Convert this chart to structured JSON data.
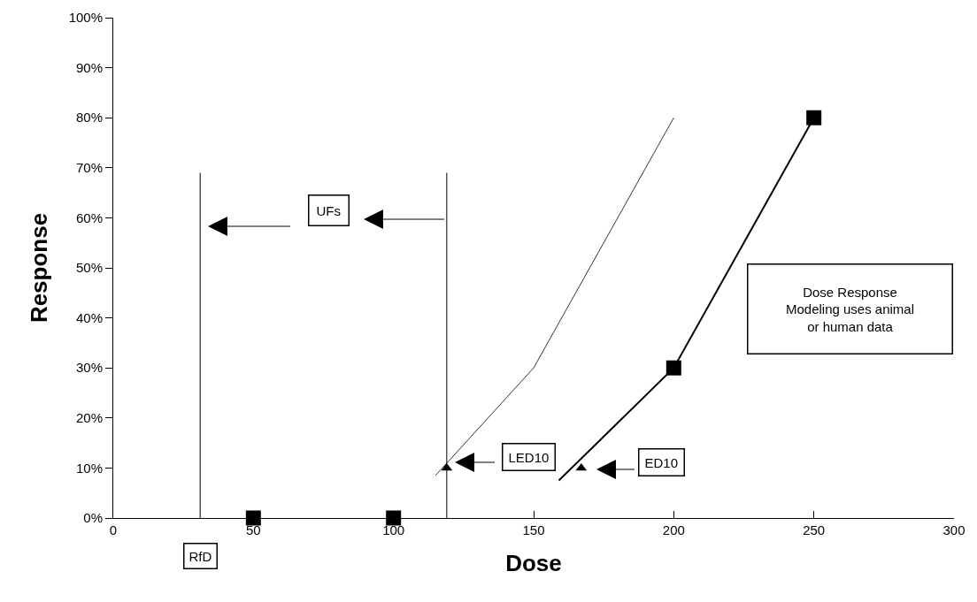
{
  "chart_data": {
    "type": "line",
    "xlabel": "Dose",
    "ylabel": "Response",
    "xlim": [
      0,
      300
    ],
    "xticks": [
      0,
      50,
      100,
      150,
      200,
      250,
      300
    ],
    "ylim": [
      0,
      100
    ],
    "yticks": [
      {
        "value": 0,
        "label": "0%"
      },
      {
        "value": 10,
        "label": "10%"
      },
      {
        "value": 20,
        "label": "20%"
      },
      {
        "value": 30,
        "label": "30%"
      },
      {
        "value": 40,
        "label": "40%"
      },
      {
        "value": 50,
        "label": "50%"
      },
      {
        "value": 60,
        "label": "60%"
      },
      {
        "value": 70,
        "label": "70%"
      },
      {
        "value": 80,
        "label": "80%"
      },
      {
        "value": 90,
        "label": "90%"
      },
      {
        "value": 100,
        "label": "100%"
      }
    ],
    "grid": false,
    "series": [
      {
        "type": "line",
        "x": [
          31,
          31
        ],
        "values": [
          0,
          69
        ],
        "color": "#000000",
        "marker": "none"
      },
      {
        "type": "line",
        "x": [
          119,
          119
        ],
        "values": [
          0,
          69
        ],
        "color": "#000000",
        "marker": "none"
      },
      {
        "type": "line",
        "x": [
          115,
          150,
          200
        ],
        "values": [
          8.5,
          30,
          80
        ],
        "color": "#000000",
        "marker": "none"
      },
      {
        "type": "line",
        "x": [
          159,
          200,
          250
        ],
        "values": [
          7.5,
          30,
          80
        ],
        "color": "#000000",
        "marker": "none"
      },
      {
        "type": "scatter",
        "x": [
          50,
          100,
          200,
          250
        ],
        "values": [
          0,
          0,
          30,
          80
        ],
        "color": "#000000",
        "marker": "square"
      },
      {
        "type": "scatter",
        "x": [
          119,
          167
        ],
        "values": [
          10,
          10
        ],
        "color": "#000000",
        "marker": "triangle"
      }
    ],
    "annotations": [
      "UFs",
      "LED10",
      "ED10",
      {
        "text": "RfD",
        "x": 31,
        "y": 0
      },
      "Dose Response\nModeling uses animal\nor human data"
    ]
  }
}
